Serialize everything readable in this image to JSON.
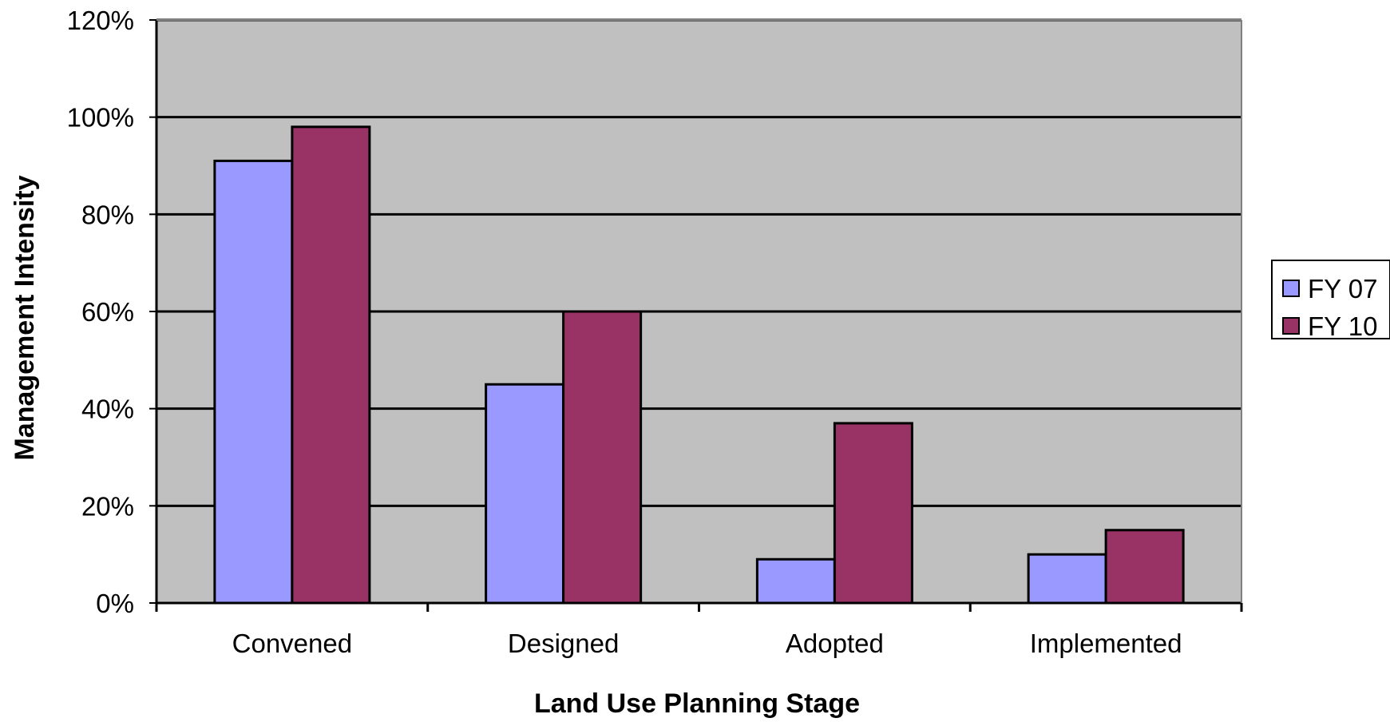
{
  "chart_data": {
    "type": "bar",
    "title": "",
    "xlabel": "Land Use Planning Stage",
    "ylabel": "Management Intensity",
    "categories": [
      "Convened",
      "Designed",
      "Adopted",
      "Implemented"
    ],
    "series": [
      {
        "name": "FY 07",
        "values": [
          91,
          45,
          9,
          10
        ],
        "color": "#9999FF"
      },
      {
        "name": "FY 10",
        "values": [
          98,
          60,
          37,
          15
        ],
        "color": "#993366"
      }
    ],
    "ylim": [
      0,
      120
    ],
    "y_ticks": [
      0,
      20,
      40,
      60,
      80,
      100,
      120
    ],
    "y_tick_labels": [
      "0%",
      "20%",
      "40%",
      "60%",
      "80%",
      "100%",
      "120%"
    ],
    "y_unit": "%",
    "grid": true,
    "legend_position": "right",
    "plot_background": "#C0C0C0"
  }
}
